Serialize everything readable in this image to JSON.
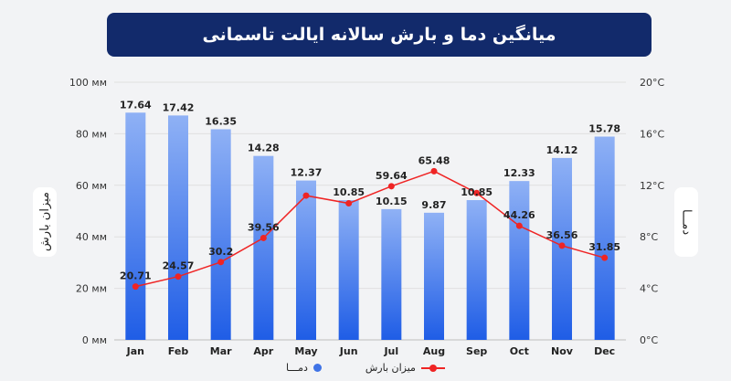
{
  "chart_data": {
    "title": "میانگین دما و بارش سالانه ایالت تاسمانی",
    "categories": [
      "Jan",
      "Feb",
      "Mar",
      "Apr",
      "May",
      "Jun",
      "Jul",
      "Aug",
      "Sep",
      "Oct",
      "Nov",
      "Dec"
    ],
    "left_axis": {
      "label": "میزان بارش",
      "ticks": [
        "0 мм",
        "20 мм",
        "40 мм",
        "60 мм",
        "80 мм",
        "100 мм"
      ],
      "range": [
        0,
        100
      ]
    },
    "right_axis": {
      "label": "دمـــا",
      "ticks": [
        "0°C",
        "4°C",
        "8°C",
        "12°C",
        "16°C",
        "20°C"
      ],
      "range": [
        0,
        20
      ]
    },
    "series": [
      {
        "name": "دمـــا",
        "type": "bar",
        "axis": "right",
        "values": [
          17.64,
          17.42,
          16.35,
          14.28,
          12.37,
          10.85,
          10.15,
          9.87,
          10.85,
          12.33,
          14.12,
          15.78
        ],
        "labels": [
          "17.64",
          "17.42",
          "16.35",
          "14.28",
          "12.37",
          "10.85",
          "10.15",
          "9.87",
          "10.85",
          "12.33",
          "14.12",
          "15.78"
        ],
        "color_top": "#8fb1f5",
        "color_bottom": "#1f5de6"
      },
      {
        "name": "میزان بارش",
        "type": "line",
        "axis": "left",
        "values": [
          20.71,
          24.57,
          30.2,
          39.56,
          56.0,
          53.0,
          59.64,
          65.48,
          57.0,
          44.26,
          36.56,
          31.85
        ],
        "labels": [
          "20.71",
          "24.57",
          "30.2",
          "39.56",
          "",
          "",
          "59.64",
          "65.48",
          "",
          "44.26",
          "36.56",
          "31.85"
        ],
        "color": "#ef2424"
      }
    ],
    "grid": "horizontal",
    "legend_position": "bottom-center"
  }
}
